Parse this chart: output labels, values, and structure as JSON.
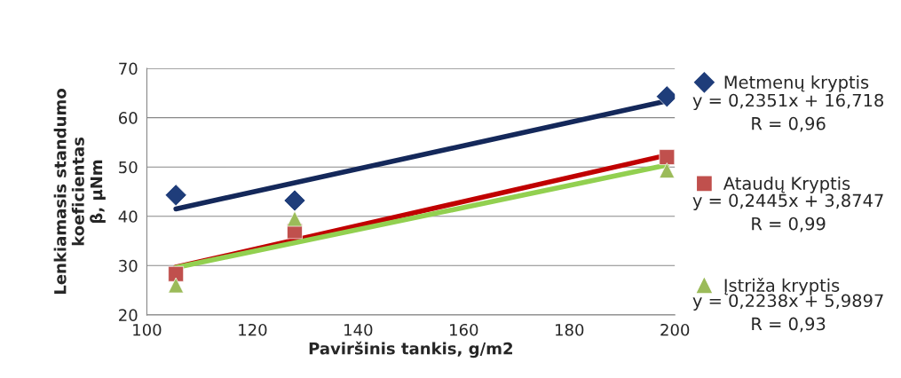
{
  "chart_data": {
    "type": "scatter",
    "xlabel": "Paviršinis tankis, g/m2",
    "ylabel": "Lenkiamasis standumo\nkoeficientas\nβ, µNm",
    "xlim": [
      100,
      200
    ],
    "xticks": [
      100,
      120,
      140,
      160,
      180,
      200
    ],
    "ylim": [
      20,
      70
    ],
    "yticks": [
      20,
      30,
      40,
      50,
      60,
      70
    ],
    "grid": "y",
    "legend": "right",
    "series": [
      {
        "name": "Metmenų kryptis",
        "color": "#1f3d7a",
        "marker": "diamond",
        "x": [
          105.5,
          128,
          198.5
        ],
        "values": [
          44.3,
          43.2,
          64.3
        ]
      },
      {
        "name": "Ataudų Kryptis",
        "color": "#c0504d",
        "marker": "square",
        "x": [
          105.5,
          128,
          198.5
        ],
        "values": [
          28.3,
          37.0,
          52.0
        ]
      },
      {
        "name": "Įstriža kryptis",
        "color": "#9bbb59",
        "marker": "triangle",
        "x": [
          105.5,
          128,
          198.5
        ],
        "values": [
          26.0,
          39.5,
          49.3
        ]
      },
      {
        "type": "line",
        "color": "#14285a",
        "x": [
          105.5,
          198.5
        ],
        "values": [
          41.5,
          63.4
        ]
      },
      {
        "type": "line",
        "color": "#c00000",
        "x": [
          105.5,
          198.5
        ],
        "values": [
          29.7,
          52.4
        ]
      },
      {
        "type": "line",
        "color": "#92d050",
        "x": [
          105.5,
          198.5
        ],
        "values": [
          29.6,
          50.4
        ]
      }
    ],
    "annotations": [
      "y = 0,2351x + 16,718\nR = 0,96",
      "y = 0,2445x + 3,8747\nR = 0,99",
      "y = 0,2238x + 5,9897\nR = 0,93"
    ]
  }
}
